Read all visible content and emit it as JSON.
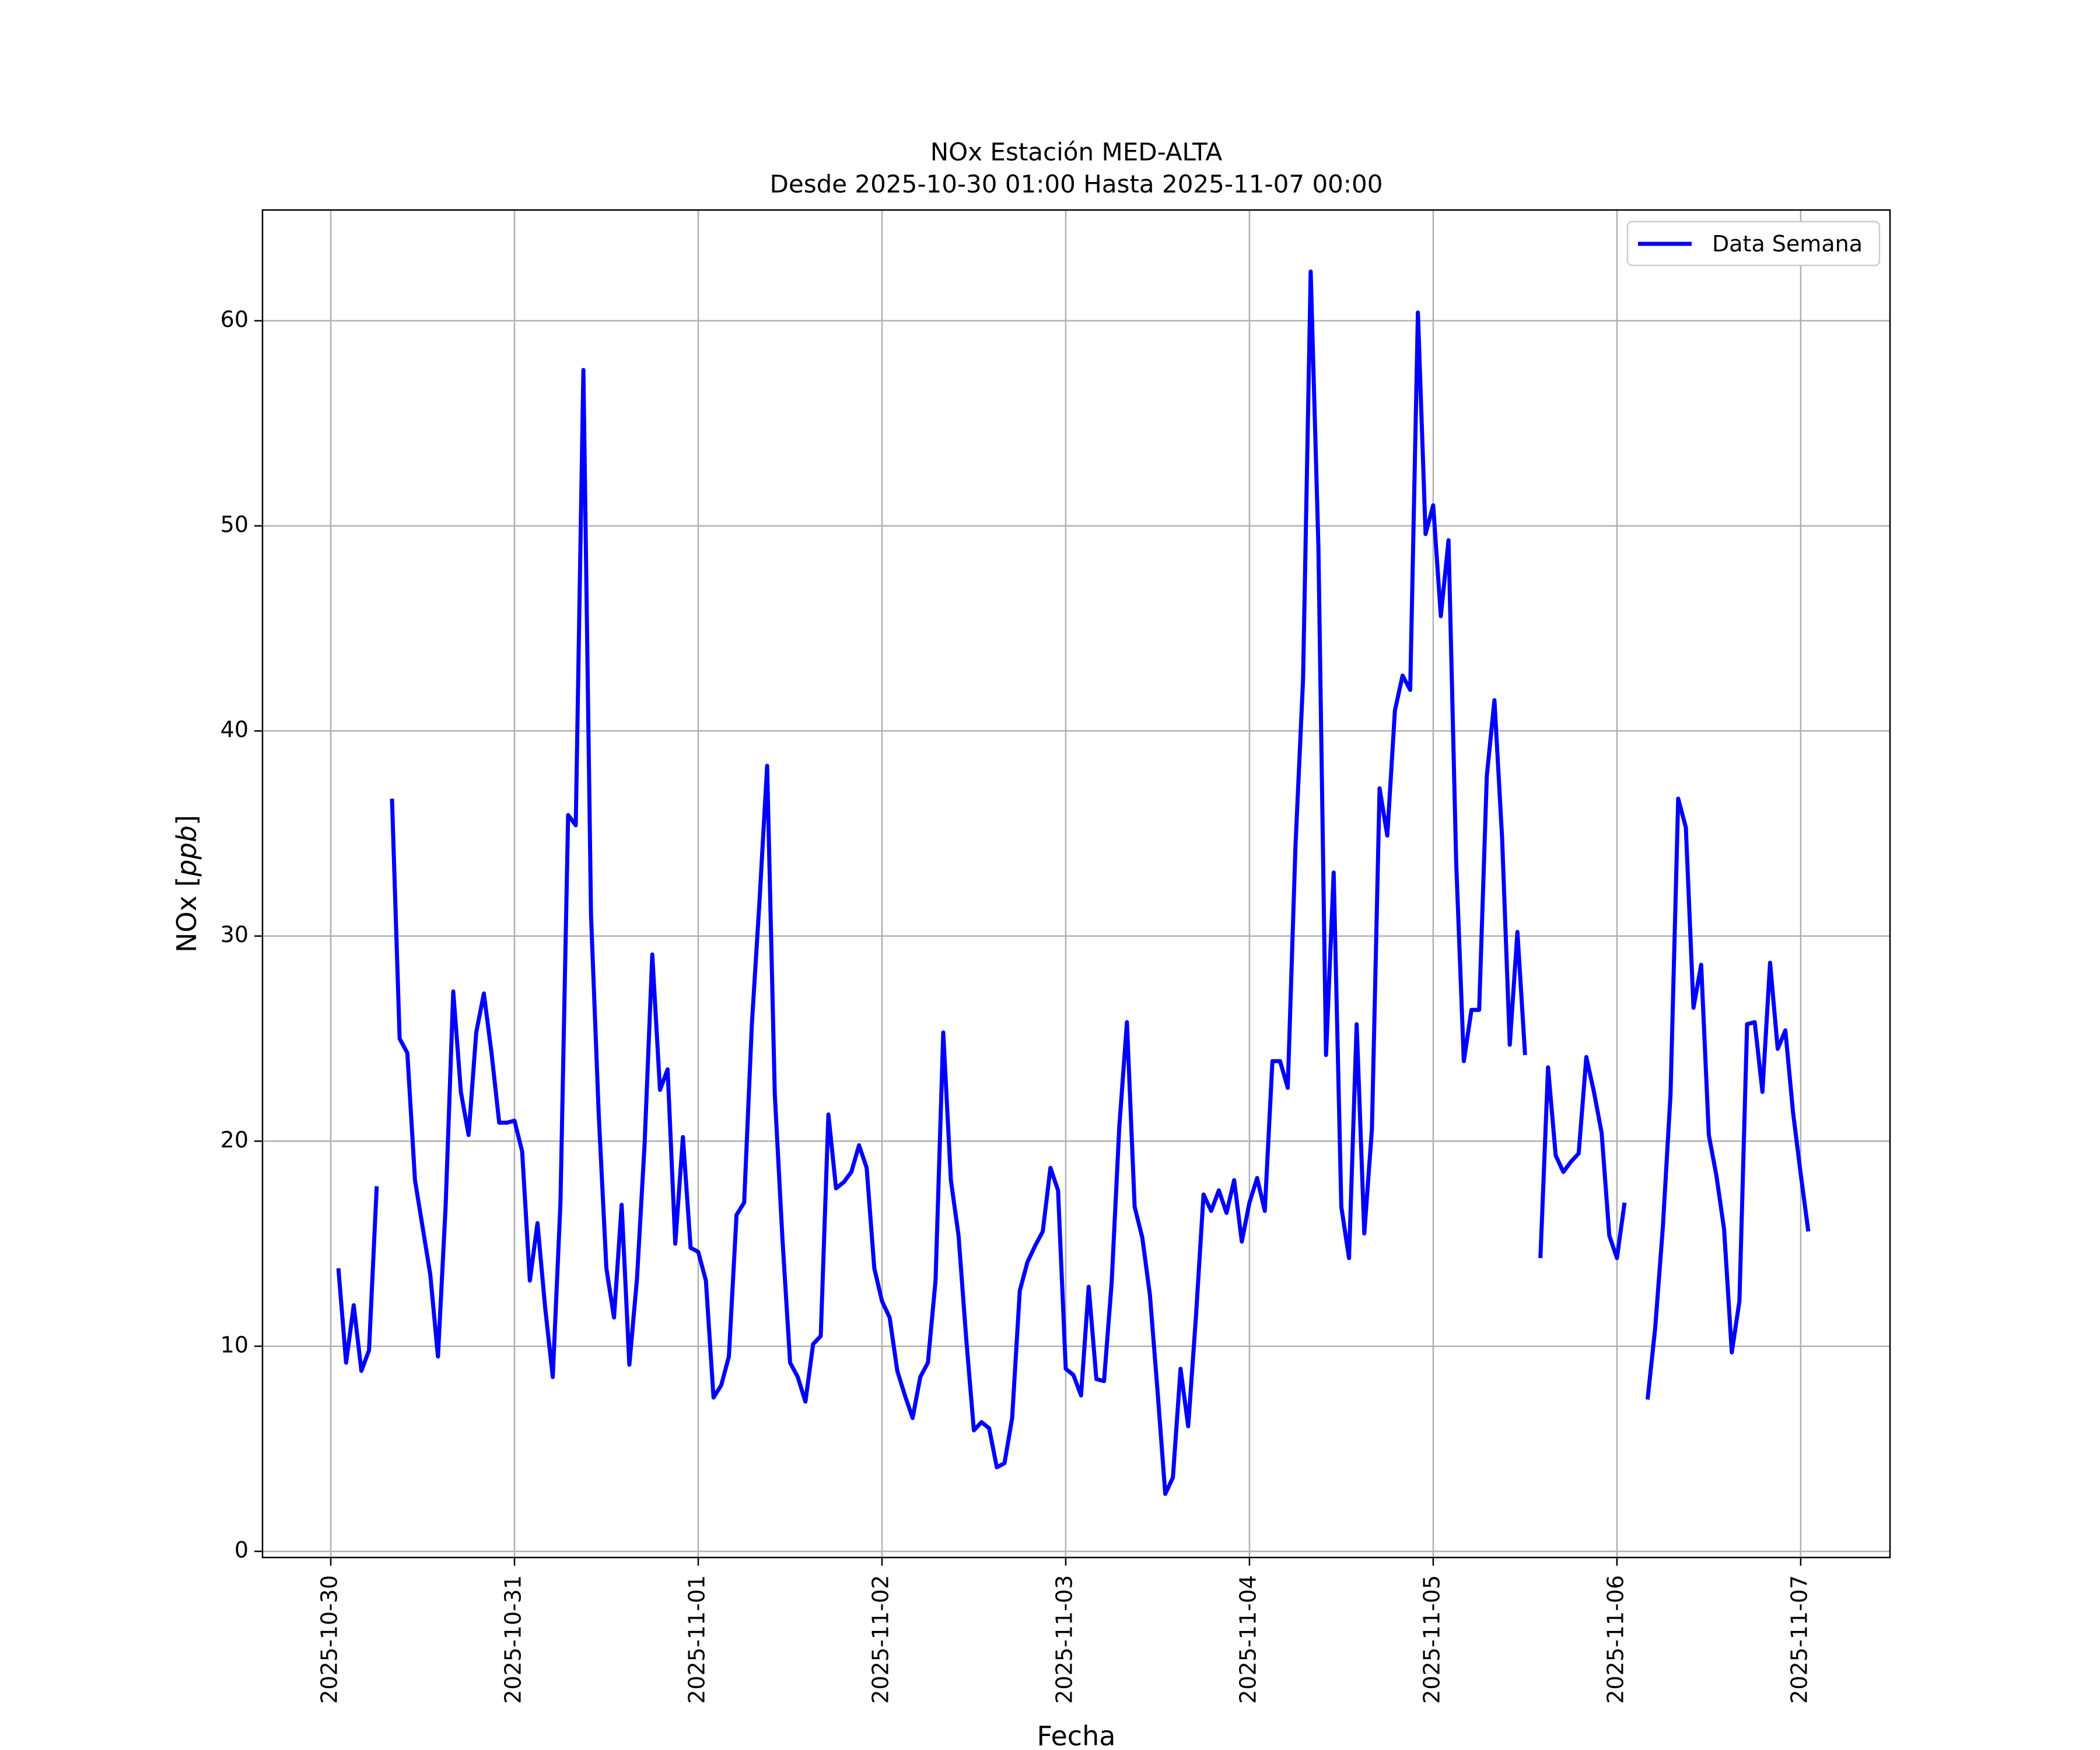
{
  "chart_data": {
    "type": "line",
    "title_line1": "NOx Estación MED-ALTA",
    "title_line2": "Desde 2025-10-30 01:00 Hasta 2025-11-07 00:00",
    "xlabel": "Fecha",
    "ylabel": "NOx [ppb]",
    "xlim": [
      "2025-10-29 15:05",
      "2025-11-07 11:40"
    ],
    "ylim": [
      -0.3,
      65.4
    ],
    "xticks": [
      "2025-10-30",
      "2025-10-31",
      "2025-11-01",
      "2025-11-02",
      "2025-11-03",
      "2025-11-04",
      "2025-11-05",
      "2025-11-06",
      "2025-11-07"
    ],
    "yticks": [
      0,
      10,
      20,
      30,
      40,
      50,
      60
    ],
    "grid": true,
    "legend": {
      "position": "upper right",
      "entries": [
        "Data Semana"
      ]
    },
    "series": [
      {
        "name": "Data Semana",
        "color": "#0000ff",
        "time_start": "2025-10-30 01:00",
        "time_end": "2025-11-07 00:00",
        "interval": "1 hour",
        "values": [
          13.8,
          9.2,
          12.0,
          8.8,
          9.8,
          17.8,
          null,
          36.7,
          25.0,
          24.3,
          18.1,
          15.8,
          13.5,
          9.5,
          16.8,
          27.3,
          22.4,
          20.3,
          25.3,
          27.2,
          24.3,
          20.9,
          20.9,
          21.0,
          19.5,
          13.2,
          16.0,
          11.9,
          8.5,
          17.0,
          35.9,
          35.4,
          57.6,
          31.0,
          21.3,
          13.8,
          11.4,
          16.9,
          9.1,
          13.3,
          19.9,
          29.1,
          22.5,
          23.5,
          15.0,
          20.2,
          14.8,
          14.6,
          13.2,
          7.5,
          8.1,
          9.5,
          16.4,
          17.0,
          25.7,
          31.7,
          38.3,
          22.3,
          15.2,
          9.2,
          8.5,
          7.3,
          10.1,
          10.5,
          21.3,
          17.7,
          18.0,
          18.5,
          19.8,
          18.7,
          13.8,
          12.2,
          11.4,
          8.8,
          7.6,
          6.5,
          8.5,
          9.2,
          13.2,
          25.3,
          18.1,
          15.4,
          10.4,
          5.9,
          6.3,
          6.0,
          4.1,
          4.3,
          6.5,
          12.7,
          14.1,
          14.9,
          15.6,
          18.7,
          17.6,
          8.9,
          8.6,
          7.6,
          12.9,
          8.4,
          8.3,
          13.1,
          20.7,
          25.8,
          16.8,
          15.3,
          12.5,
          7.8,
          2.8,
          3.6,
          8.9,
          6.1,
          11.4,
          17.4,
          16.6,
          17.6,
          16.5,
          18.1,
          15.1,
          17.0,
          18.2,
          16.6,
          23.9,
          23.9,
          22.6,
          34.3,
          42.5,
          62.4,
          49.0,
          24.2,
          33.1,
          16.8,
          14.3,
          25.7,
          15.5,
          20.6,
          37.2,
          34.9,
          41.0,
          42.7,
          42.0,
          60.4,
          49.6,
          51.0,
          45.6,
          49.3,
          33.6,
          23.9,
          26.4,
          26.4,
          37.8,
          41.5,
          34.8,
          24.7,
          30.2,
          24.2,
          null,
          14.3,
          23.6,
          19.3,
          18.5,
          19.0,
          19.4,
          24.1,
          22.4,
          20.4,
          15.4,
          14.3,
          17.0,
          null,
          null,
          7.4,
          10.9,
          15.8,
          22.3,
          36.7,
          35.3,
          26.5,
          28.6,
          20.3,
          18.3,
          15.7,
          9.7,
          12.2,
          25.7,
          25.8,
          22.4,
          28.7,
          24.5,
          25.4,
          21.4,
          18.4,
          15.6
        ]
      }
    ]
  }
}
